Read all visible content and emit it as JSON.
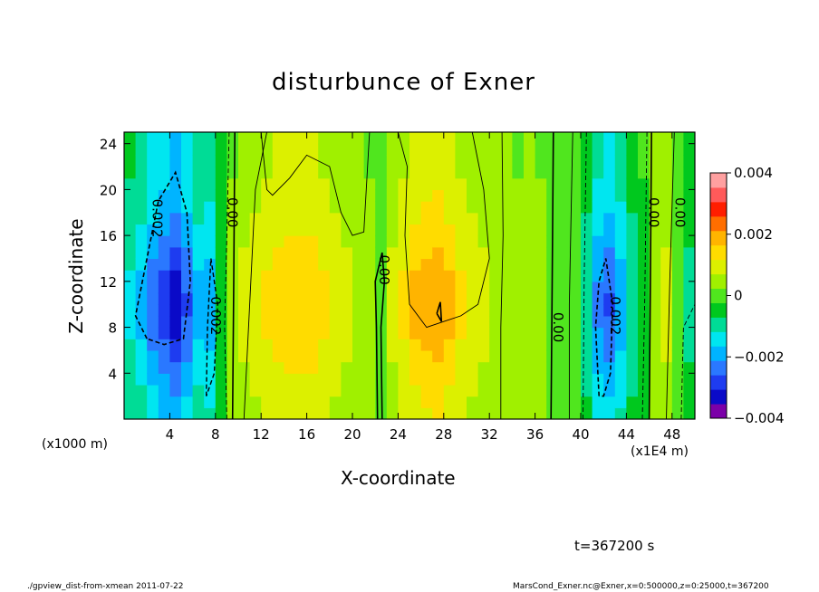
{
  "chart_data": {
    "type": "heatmap",
    "title": "disturbunce of Exner",
    "xlabel": "X-coordinate",
    "ylabel": "Z-coordinate",
    "x_unit_left": "(x1000 m)",
    "x_unit_right": "(x1E4 m)",
    "xlim": [
      0,
      50
    ],
    "ylim": [
      0,
      25
    ],
    "x_ticks": [
      "4",
      "8",
      "12",
      "16",
      "20",
      "24",
      "28",
      "32",
      "36",
      "40",
      "44",
      "48"
    ],
    "x_tick_values": [
      4,
      8,
      12,
      16,
      20,
      24,
      28,
      32,
      36,
      40,
      44,
      48
    ],
    "y_ticks": [
      "4",
      "8",
      "12",
      "16",
      "20",
      "24"
    ],
    "y_tick_values": [
      4,
      8,
      12,
      16,
      20,
      24
    ],
    "colorbar": {
      "range": [
        -0.004,
        0.004
      ],
      "labels": [
        "0.004",
        "0.002",
        "0",
        "−0.002",
        "−0.004"
      ],
      "label_values": [
        0.004,
        0.002,
        0,
        -0.002,
        -0.004
      ],
      "colors": [
        "#7b00a8",
        "#0a0ac8",
        "#1e3cf0",
        "#2a78ff",
        "#00b4ff",
        "#00e6f0",
        "#00dc96",
        "#00c81e",
        "#50e61e",
        "#a0f000",
        "#dcf000",
        "#ffdc00",
        "#ffb400",
        "#ff6e00",
        "#ff1e00",
        "#ff5a5a",
        "#ffa0a0"
      ]
    },
    "contour_labels": [
      "0.002",
      "0.00",
      "0.002",
      "0.00",
      "0.00",
      "0.002",
      "0.00",
      "0.00"
    ],
    "columns": [
      {
        "x": 0.5,
        "v": -0.0012
      },
      {
        "x": 1.5,
        "v": -0.0016
      },
      {
        "x": 2.5,
        "v": -0.0022
      },
      {
        "x": 3.5,
        "v": -0.0026
      },
      {
        "x": 4.5,
        "v": -0.003
      },
      {
        "x": 5.5,
        "v": -0.0024
      },
      {
        "x": 6.5,
        "v": -0.0016
      },
      {
        "x": 7.5,
        "v": -0.0018
      },
      {
        "x": 8.5,
        "v": -0.0006
      },
      {
        "x": 9.5,
        "v": 0.0004
      },
      {
        "x": 10.5,
        "v": 0.0008
      },
      {
        "x": 11.5,
        "v": 0.001
      },
      {
        "x": 12.5,
        "v": 0.0012
      },
      {
        "x": 13.5,
        "v": 0.0013
      },
      {
        "x": 14.5,
        "v": 0.0014
      },
      {
        "x": 15.5,
        "v": 0.0015
      },
      {
        "x": 16.5,
        "v": 0.0014
      },
      {
        "x": 17.5,
        "v": 0.0012
      },
      {
        "x": 18.5,
        "v": 0.001
      },
      {
        "x": 19.5,
        "v": 0.0008
      },
      {
        "x": 20.5,
        "v": 0.0006
      },
      {
        "x": 21.5,
        "v": 0.0004
      },
      {
        "x": 22.5,
        "v": 0.0002
      },
      {
        "x": 23.5,
        "v": 0.0008
      },
      {
        "x": 24.5,
        "v": 0.0012
      },
      {
        "x": 25.5,
        "v": 0.0016
      },
      {
        "x": 26.5,
        "v": 0.0018
      },
      {
        "x": 27.5,
        "v": 0.0019
      },
      {
        "x": 28.5,
        "v": 0.0016
      },
      {
        "x": 29.5,
        "v": 0.0012
      },
      {
        "x": 30.5,
        "v": 0.001
      },
      {
        "x": 31.5,
        "v": 0.0008
      },
      {
        "x": 32.5,
        "v": 0.0006
      },
      {
        "x": 33.5,
        "v": 0.0005
      },
      {
        "x": 34.5,
        "v": 0.0004
      },
      {
        "x": 35.5,
        "v": 0.0006
      },
      {
        "x": 36.5,
        "v": 0.0004
      },
      {
        "x": 37.5,
        "v": 0.0002
      },
      {
        "x": 38.5,
        "v": -0.0002
      },
      {
        "x": 39.5,
        "v": 0.0
      },
      {
        "x": 40.5,
        "v": -0.001
      },
      {
        "x": 41.5,
        "v": -0.002
      },
      {
        "x": 42.5,
        "v": -0.0024
      },
      {
        "x": 43.5,
        "v": -0.0018
      },
      {
        "x": 44.5,
        "v": -0.001
      },
      {
        "x": 45.5,
        "v": -0.0004
      },
      {
        "x": 46.5,
        "v": 0.0006
      },
      {
        "x": 47.5,
        "v": 0.0008
      },
      {
        "x": 48.5,
        "v": -0.0002
      },
      {
        "x": 49.5,
        "v": -0.0008
      }
    ]
  },
  "time_label": "t=367200 s",
  "footer": {
    "left": "./gpview_dist-from-xmean  2011-07-22",
    "right": "MarsCond_Exner.nc@Exner,x=0:500000,z=0:25000,t=367200"
  }
}
